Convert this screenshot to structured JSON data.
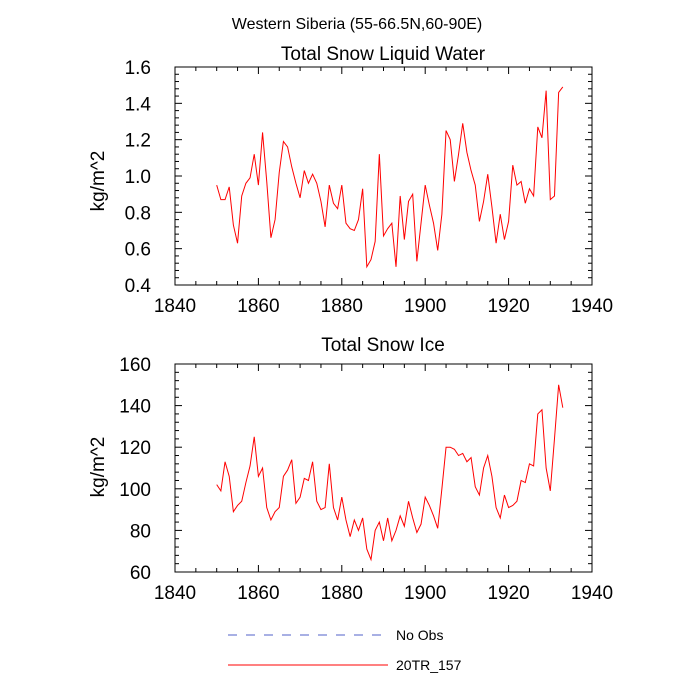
{
  "figure": {
    "title": "Western Siberia (55-66.5N,60-90E)"
  },
  "legend": {
    "items": [
      {
        "label": "No Obs",
        "color": "#5060c8",
        "style": "dashed"
      },
      {
        "label": "20TR_157",
        "color": "#ff0000",
        "style": "solid"
      }
    ]
  },
  "chart_data": [
    {
      "type": "line",
      "title": "Total Snow Liquid Water",
      "xlabel": "",
      "ylabel": "kg/m^2",
      "xlim": [
        1840,
        1940
      ],
      "ylim": [
        0.4,
        1.6
      ],
      "xticks": [
        1840,
        1860,
        1880,
        1900,
        1920,
        1940
      ],
      "yticks": [
        0.4,
        0.6,
        0.8,
        1.0,
        1.2,
        1.4,
        1.6
      ],
      "ytick_labels": [
        "0.4",
        "0.6",
        "0.8",
        "1.0",
        "1.2",
        "1.4",
        "1.6"
      ],
      "series": [
        {
          "name": "20TR_157",
          "color": "#ff0000",
          "x_start": 1850,
          "x_step": 1,
          "values": [
            0.95,
            0.87,
            0.87,
            0.94,
            0.73,
            0.63,
            0.89,
            0.96,
            0.99,
            1.12,
            0.95,
            1.24,
            0.97,
            0.66,
            0.76,
            1.02,
            1.19,
            1.16,
            1.05,
            0.96,
            0.88,
            1.03,
            0.96,
            1.01,
            0.96,
            0.86,
            0.72,
            0.95,
            0.85,
            0.82,
            0.95,
            0.74,
            0.71,
            0.7,
            0.76,
            0.93,
            0.5,
            0.54,
            0.64,
            1.12,
            0.67,
            0.71,
            0.74,
            0.5,
            0.89,
            0.65,
            0.86,
            0.9,
            0.53,
            0.74,
            0.95,
            0.84,
            0.74,
            0.59,
            0.79,
            1.25,
            1.2,
            0.97,
            1.12,
            1.29,
            1.13,
            1.03,
            0.95,
            0.75,
            0.86,
            1.01,
            0.83,
            0.63,
            0.79,
            0.65,
            0.75,
            1.06,
            0.95,
            0.97,
            0.85,
            0.93,
            0.89,
            1.27,
            1.21,
            1.47,
            0.87,
            0.89,
            1.46,
            1.49
          ]
        }
      ]
    },
    {
      "type": "line",
      "title": "Total Snow Ice",
      "xlabel": "",
      "ylabel": "kg/m^2",
      "xlim": [
        1840,
        1940
      ],
      "ylim": [
        60,
        160
      ],
      "xticks": [
        1840,
        1860,
        1880,
        1900,
        1920,
        1940
      ],
      "yticks": [
        60,
        80,
        100,
        120,
        140,
        160
      ],
      "ytick_labels": [
        "60",
        "80",
        "100",
        "120",
        "140",
        "160"
      ],
      "series": [
        {
          "name": "20TR_157",
          "color": "#ff0000",
          "x_start": 1850,
          "x_step": 1,
          "values": [
            102,
            99,
            113,
            106,
            89,
            92,
            94,
            103,
            111,
            125,
            106,
            110,
            91,
            85,
            89,
            91,
            106,
            109,
            114,
            93,
            96,
            105,
            104,
            113,
            94,
            90,
            91,
            112,
            91,
            85,
            96,
            85,
            77,
            85,
            80,
            86,
            71,
            66,
            80,
            84,
            75,
            86,
            75,
            80,
            87,
            82,
            94,
            86,
            79,
            83,
            96,
            92,
            87,
            81,
            100,
            120,
            120,
            119,
            116,
            117,
            113,
            115,
            101,
            97,
            110,
            116,
            106,
            91,
            86,
            97,
            91,
            92,
            94,
            104,
            103,
            112,
            111,
            136,
            138,
            110,
            99,
            124,
            150,
            139
          ]
        }
      ]
    }
  ]
}
